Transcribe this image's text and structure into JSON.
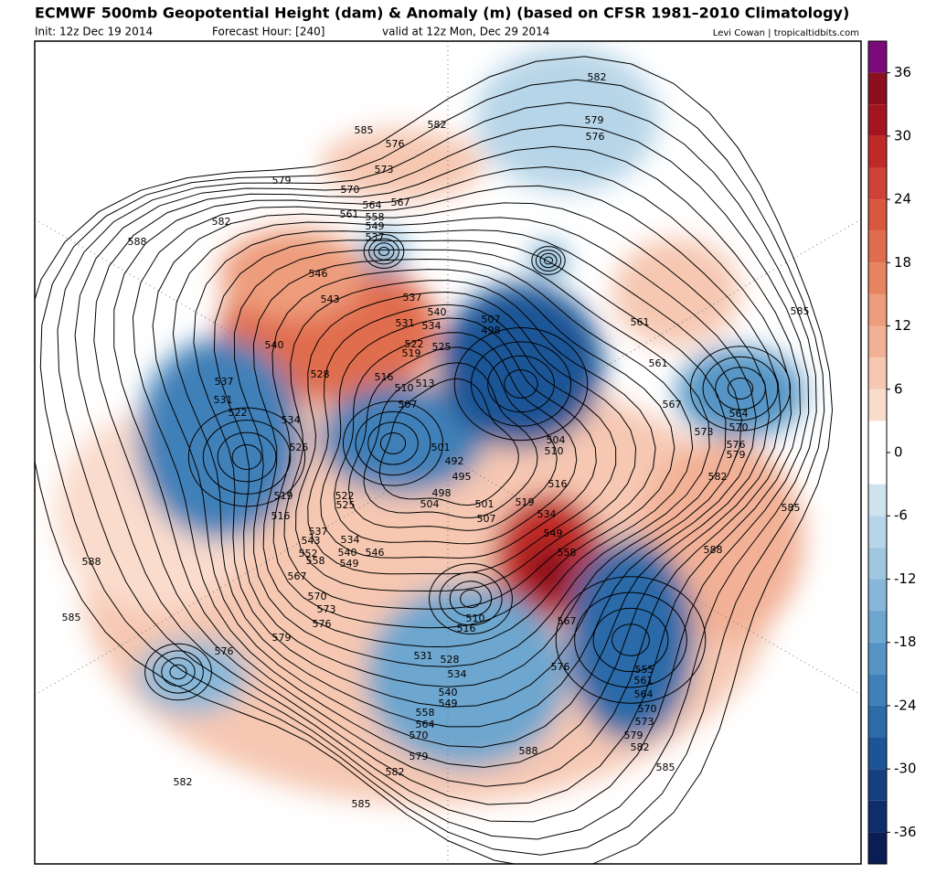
{
  "header": {
    "title": "ECMWF 500mb Geopotential Height (dam) & Anomaly (m) (based on CFSR 1981–2010 Climatology)",
    "init": "Init: 12z Dec 19 2014",
    "forecast_hour": "Forecast Hour: [240]",
    "valid": "valid at 12z Mon, Dec 29 2014",
    "credit": "Levi Cowan | tropicaltidbits.com"
  },
  "colorbar": {
    "lim": [
      -39,
      39
    ],
    "ticks": [
      36,
      30,
      24,
      18,
      12,
      6,
      0,
      -6,
      -12,
      -18,
      -24,
      -30,
      -36
    ],
    "colors": [
      "#0b1d55",
      "#0f2d6b",
      "#143f80",
      "#1d5495",
      "#2c6aa8",
      "#3f80b8",
      "#5594c4",
      "#6da6ce",
      "#86b7d8",
      "#9fc7e0",
      "#b7d5e8",
      "#cfe3ee",
      "#ffffff",
      "#ffffff",
      "#fadccd",
      "#f6c8b2",
      "#f2b196",
      "#ed9c7c",
      "#e78462",
      "#e06d4e",
      "#d8583f",
      "#cf4336",
      "#bf2a27",
      "#a5151f",
      "#8b0f1e",
      "#7b0a7b"
    ]
  },
  "contour_labels": [
    582,
    579,
    576,
    585,
    582,
    576,
    573,
    570,
    567,
    564,
    561,
    558,
    549,
    537,
    579,
    582,
    588,
    546,
    543,
    537,
    540,
    531,
    534,
    522,
    525,
    519,
    540,
    528,
    516,
    510,
    513,
    507,
    507,
    498,
    537,
    531,
    522,
    534,
    525,
    501,
    492,
    495,
    498,
    504,
    501,
    507,
    519,
    516,
    585,
    561,
    561,
    567,
    564,
    570,
    573,
    576,
    579,
    582,
    585,
    588,
    549,
    558,
    567,
    576,
    555,
    561,
    564,
    570,
    573,
    579,
    582,
    585,
    588,
    579,
    582,
    585,
    582,
    576,
    579,
    588,
    585,
    537,
    543,
    552,
    558,
    567,
    570,
    573,
    576,
    546,
    549,
    540,
    534,
    510,
    516,
    531,
    528,
    534,
    540,
    549,
    558,
    564,
    570,
    516,
    510,
    504,
    519,
    534,
    522,
    525
  ]
}
